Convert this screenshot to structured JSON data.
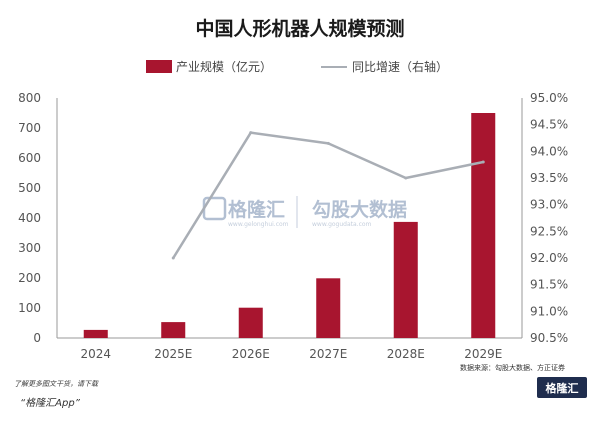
{
  "chart_data": {
    "type": "bar",
    "title": "中国人形机器人规模预测",
    "categories": [
      "2024",
      "2025E",
      "2026E",
      "2027E",
      "2028E",
      "2029E"
    ],
    "series": [
      {
        "name": "产业规模（亿元）",
        "type": "bar",
        "axis": "left",
        "color": "#a8152f",
        "values": [
          27,
          53,
          101,
          199,
          387,
          750
        ]
      },
      {
        "name": "同比增速（右轴）",
        "type": "line",
        "axis": "right",
        "color": "#a9aeb5",
        "values": [
          null,
          92.0,
          94.35,
          94.15,
          93.5,
          93.8
        ]
      }
    ],
    "ylim": [
      0,
      800
    ],
    "y_ticks": [
      "0",
      "100",
      "200",
      "300",
      "400",
      "500",
      "600",
      "700",
      "800"
    ],
    "y2lim": [
      90.5,
      95.0
    ],
    "y2_ticks": [
      "90.5%",
      "91.0%",
      "91.5%",
      "92.0%",
      "92.5%",
      "93.0%",
      "93.5%",
      "94.0%",
      "94.5%",
      "95.0%"
    ],
    "grid": false,
    "legend_position": "top"
  },
  "source_note": "数据来源：勾股大数据、方正证券",
  "watermark": {
    "brand_left": "格隆汇",
    "brand_left_en": "www.gelonghui.com",
    "brand_right": "勾股大数据",
    "brand_right_en": "www.gogudata.com"
  },
  "footer": {
    "hint": "了解更多图文干货，请下载",
    "app_link": "“格隆汇App”",
    "logo_text": "格隆汇"
  },
  "colors": {
    "bar": "#a8152f",
    "line": "#a9aeb5",
    "axis": "#9a9a9a"
  }
}
